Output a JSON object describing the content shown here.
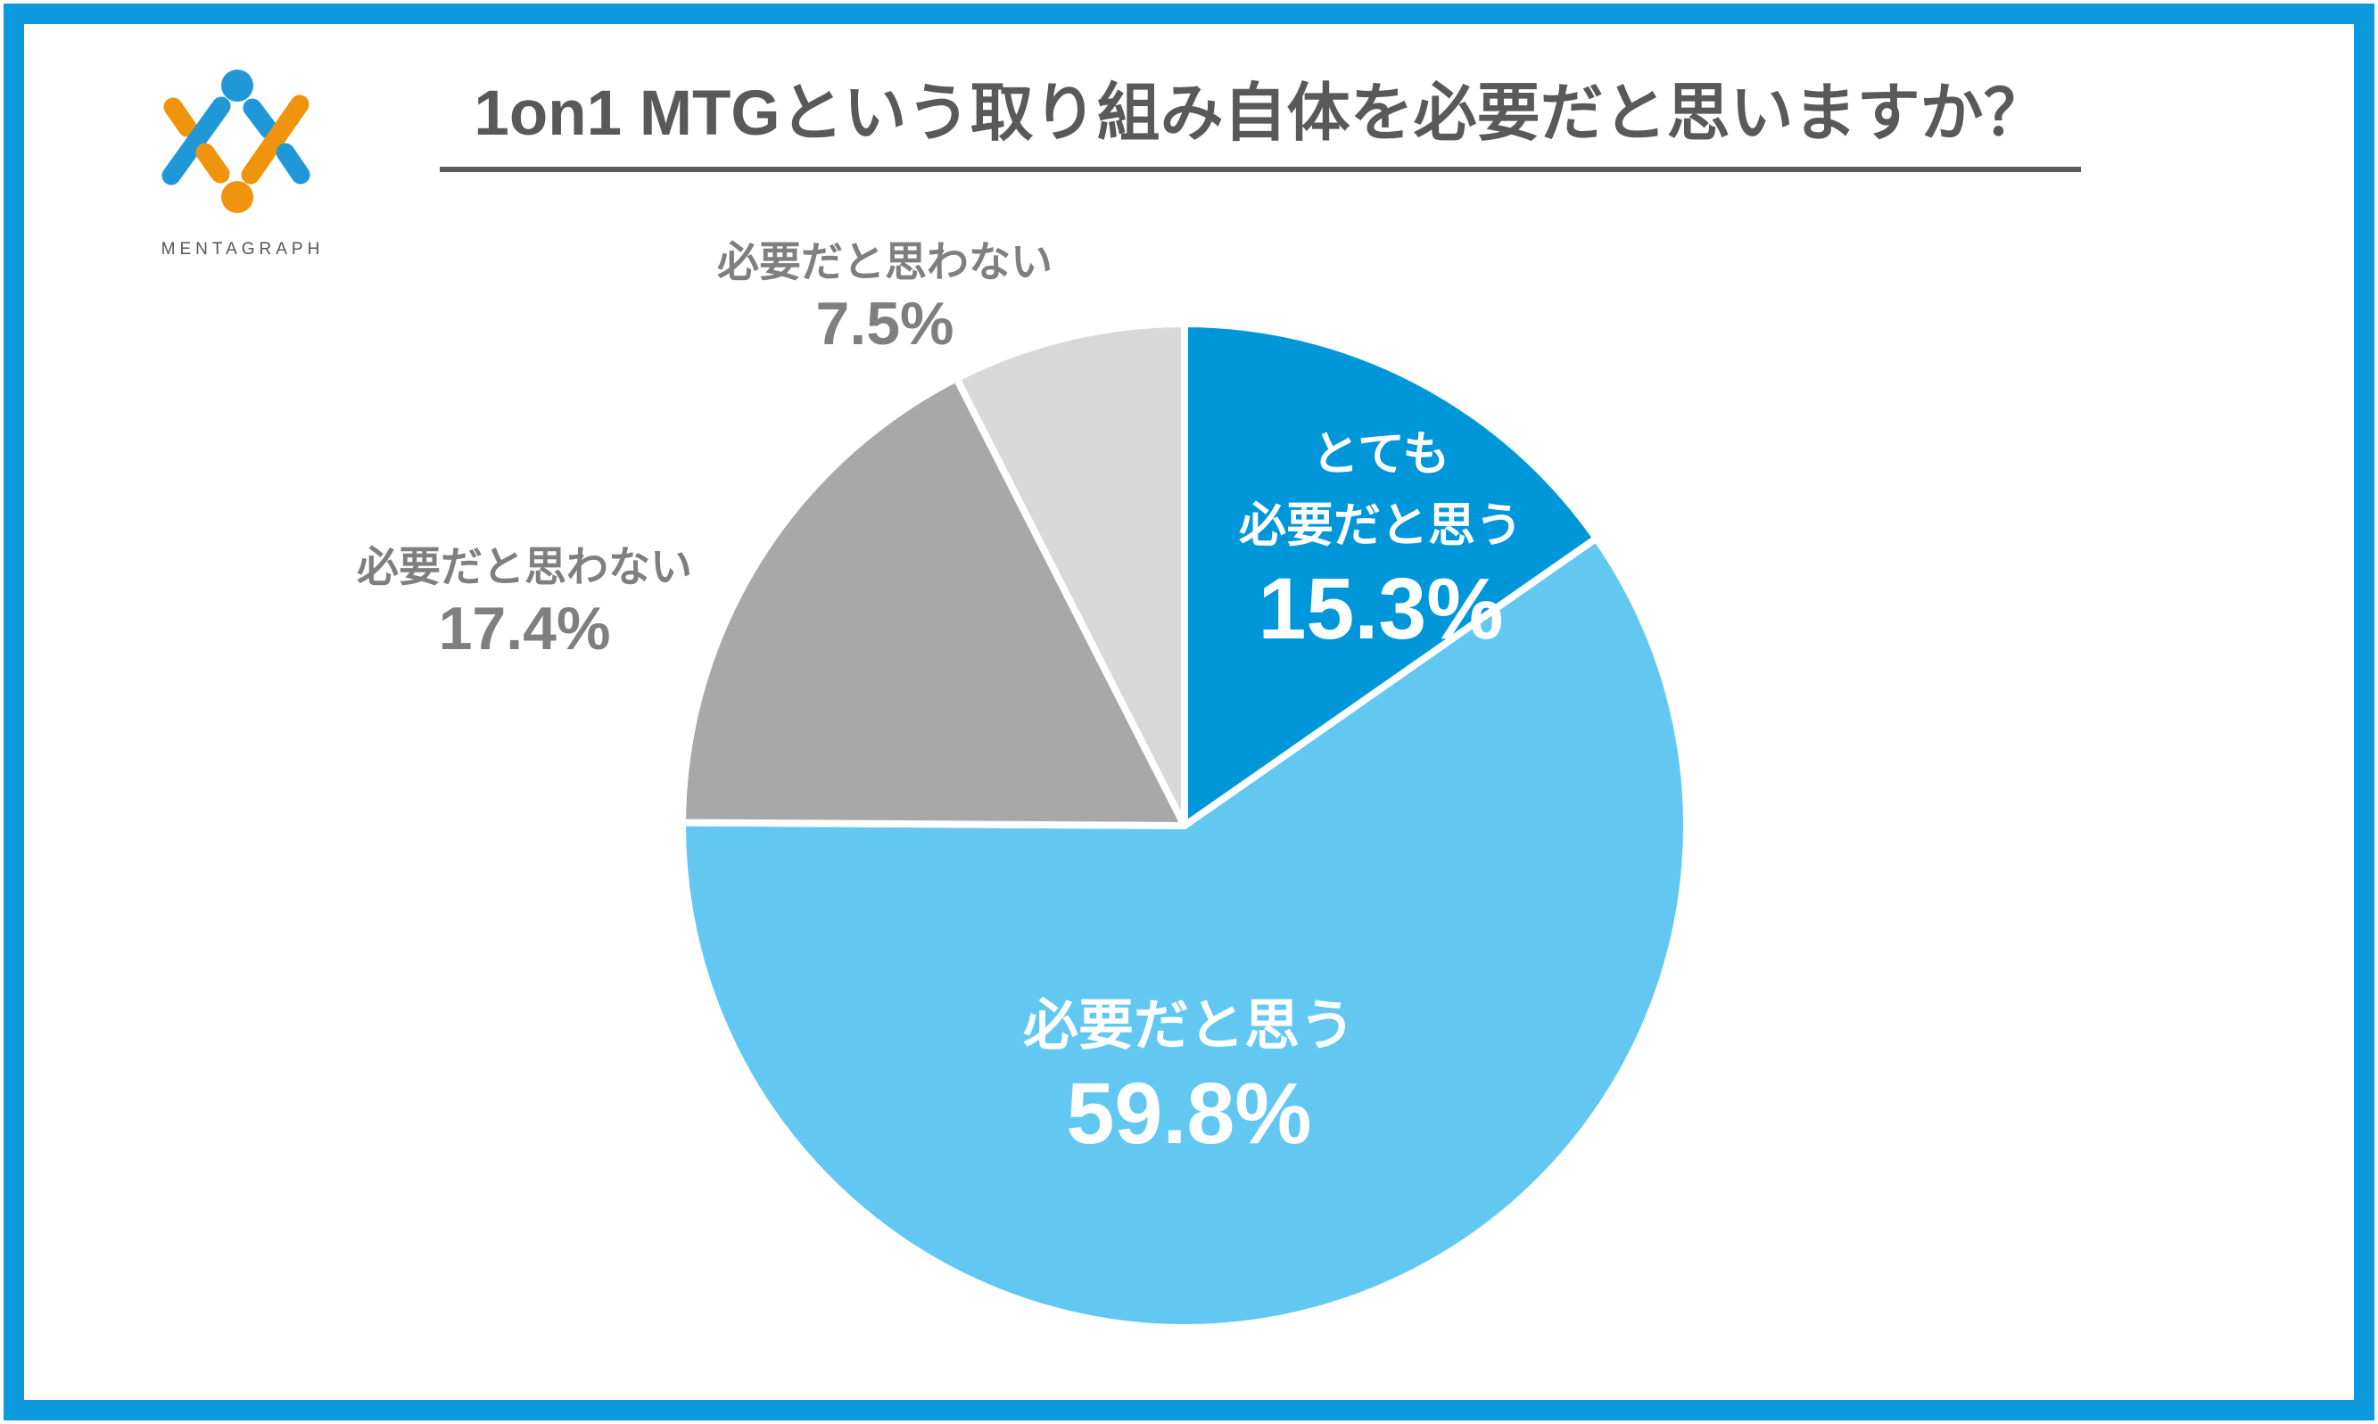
{
  "page": {
    "brand": {
      "name": "MENTAGRAPH"
    },
    "title": {
      "text": "1on1 MTGという取り組み自体を必要だと思いますか？"
    }
  },
  "frame": {
    "border_color": "#0d9adc"
  },
  "logo": {
    "blue": "#2098d8",
    "orange": "#f0930d"
  },
  "chart_data": {
    "type": "pie",
    "title": "1on1 MTGという取り組み自体を必要だと思いますか？",
    "start_angle_deg": 0,
    "direction": "clockwise",
    "radius_px": 563,
    "separator_color": "#ffffff",
    "legend": "none",
    "segments": [
      {
        "label": "とても必要だと思う",
        "value_pct": 15.3,
        "pct_text": "15.3%",
        "color": "#0096da",
        "label_lines": [
          "とても",
          "必要だと思う"
        ],
        "label_position": "inside",
        "text_color": "#ffffff"
      },
      {
        "label": "必要だと思う",
        "value_pct": 59.8,
        "pct_text": "59.8%",
        "color": "#62c8f2",
        "label_lines": [
          "必要だと思う"
        ],
        "label_position": "inside",
        "text_color": "#ffffff"
      },
      {
        "label": "必要だと思わない",
        "value_pct": 17.4,
        "pct_text": "17.4%",
        "color": "#a8a8a8",
        "label_lines": [
          "必要だと思わない"
        ],
        "label_position": "outside",
        "text_color": "#7f7f7f"
      },
      {
        "label": "必要だと思わない",
        "value_pct": 7.5,
        "pct_text": "7.5%",
        "color": "#d8d8d8",
        "label_lines": [
          "必要だと思わない"
        ],
        "label_position": "outside",
        "text_color": "#7f7f7f"
      }
    ]
  }
}
